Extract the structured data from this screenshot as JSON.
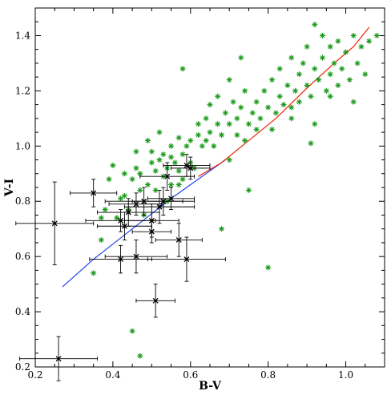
{
  "chart_data": {
    "type": "scatter",
    "title": "",
    "xlabel": "B-V",
    "ylabel": "V-I",
    "xlim": [
      0.2,
      1.1
    ],
    "ylim": [
      0.2,
      1.5
    ],
    "grid": false,
    "xticks": [
      0.2,
      0.4,
      0.6,
      0.8,
      1.0
    ],
    "xtick_labels": [
      "0.2",
      "0.4",
      "0.6",
      "0.8",
      "1.0"
    ],
    "yticks": [
      0.2,
      0.4,
      0.6,
      0.8,
      1.0,
      1.2,
      1.4
    ],
    "ytick_labels": [
      "0.2",
      "0.4",
      "0.6",
      "0.8",
      "1.0",
      "1.2",
      "1.4"
    ],
    "colors": {
      "stars": "#1a9a1a",
      "errors": "#000000",
      "blue_line": "#2244ee",
      "red_line": "#ee2200"
    },
    "series": [
      {
        "marker": "green-asterisk",
        "points": [
          [
            0.37,
            0.74
          ],
          [
            0.38,
            0.77
          ],
          [
            0.39,
            0.88
          ],
          [
            0.4,
            0.93
          ],
          [
            0.41,
            0.74
          ],
          [
            0.42,
            0.81
          ],
          [
            0.43,
            0.82
          ],
          [
            0.43,
            0.9
          ],
          [
            0.44,
            0.77
          ],
          [
            0.45,
            0.88
          ],
          [
            0.46,
            0.92
          ],
          [
            0.46,
            0.98
          ],
          [
            0.47,
            0.84
          ],
          [
            0.47,
            0.9
          ],
          [
            0.48,
            0.75
          ],
          [
            0.49,
            1.02
          ],
          [
            0.49,
            0.86
          ],
          [
            0.5,
            0.94
          ],
          [
            0.5,
            0.98
          ],
          [
            0.51,
            0.91
          ],
          [
            0.51,
            0.84
          ],
          [
            0.52,
            0.95
          ],
          [
            0.52,
            1.05
          ],
          [
            0.53,
            0.89
          ],
          [
            0.53,
            0.97
          ],
          [
            0.54,
            0.8
          ],
          [
            0.54,
            0.92
          ],
          [
            0.55,
            1.0
          ],
          [
            0.55,
            0.86
          ],
          [
            0.56,
            0.94
          ],
          [
            0.57,
            0.91
          ],
          [
            0.57,
            1.03
          ],
          [
            0.58,
            0.88
          ],
          [
            0.58,
            0.97
          ],
          [
            0.59,
            1.0
          ],
          [
            0.6,
            0.94
          ],
          [
            0.6,
            1.02
          ],
          [
            0.61,
            0.92
          ],
          [
            0.62,
            1.04
          ],
          [
            0.62,
            1.08
          ],
          [
            0.63,
            1.0
          ],
          [
            0.64,
            1.02
          ],
          [
            0.64,
            1.1
          ],
          [
            0.65,
            1.05
          ],
          [
            0.65,
            1.15
          ],
          [
            0.66,
            1.0
          ],
          [
            0.67,
            1.08
          ],
          [
            0.67,
            1.18
          ],
          [
            0.68,
            1.04
          ],
          [
            0.69,
            1.12
          ],
          [
            0.7,
            0.95
          ],
          [
            0.7,
            1.08
          ],
          [
            0.71,
            1.16
          ],
          [
            0.72,
            1.04
          ],
          [
            0.72,
            1.1
          ],
          [
            0.73,
            1.14
          ],
          [
            0.74,
            1.02
          ],
          [
            0.74,
            1.2
          ],
          [
            0.75,
            1.08
          ],
          [
            0.76,
            1.12
          ],
          [
            0.77,
            1.06
          ],
          [
            0.77,
            1.16
          ],
          [
            0.78,
            1.1
          ],
          [
            0.79,
            1.2
          ],
          [
            0.8,
            1.14
          ],
          [
            0.81,
            1.06
          ],
          [
            0.81,
            1.24
          ],
          [
            0.82,
            1.12
          ],
          [
            0.83,
            1.18
          ],
          [
            0.83,
            1.28
          ],
          [
            0.84,
            1.15
          ],
          [
            0.85,
            1.22
          ],
          [
            0.86,
            1.14
          ],
          [
            0.86,
            1.32
          ],
          [
            0.87,
            1.2
          ],
          [
            0.88,
            1.26
          ],
          [
            0.88,
            1.16
          ],
          [
            0.89,
            1.3
          ],
          [
            0.9,
            1.22
          ],
          [
            0.9,
            1.36
          ],
          [
            0.91,
            1.18
          ],
          [
            0.92,
            1.28
          ],
          [
            0.92,
            1.44
          ],
          [
            0.93,
            1.24
          ],
          [
            0.94,
            1.32
          ],
          [
            0.94,
            1.4
          ],
          [
            0.95,
            1.2
          ],
          [
            0.96,
            1.26
          ],
          [
            0.96,
            1.36
          ],
          [
            0.97,
            1.3
          ],
          [
            0.98,
            1.22
          ],
          [
            0.98,
            1.38
          ],
          [
            0.99,
            1.28
          ],
          [
            1.0,
            1.34
          ],
          [
            1.01,
            1.24
          ],
          [
            1.02,
            1.4
          ],
          [
            1.03,
            1.3
          ],
          [
            1.04,
            1.36
          ],
          [
            1.05,
            1.26
          ],
          [
            1.06,
            1.38
          ],
          [
            1.08,
            1.4
          ],
          [
            1.02,
            1.16
          ],
          [
            0.91,
            1.01
          ],
          [
            0.92,
            1.08
          ],
          [
            0.75,
            0.84
          ],
          [
            0.8,
            0.56
          ],
          [
            0.68,
            0.7
          ],
          [
            0.45,
            0.33
          ],
          [
            0.47,
            0.24
          ],
          [
            0.35,
            0.54
          ],
          [
            0.37,
            0.66
          ],
          [
            0.58,
            1.28
          ],
          [
            0.55,
            0.96
          ],
          [
            0.57,
            0.86
          ],
          [
            0.7,
            1.24
          ],
          [
            0.73,
            1.32
          ],
          [
            0.86,
            1.1
          ],
          [
            0.96,
            1.18
          ]
        ]
      },
      {
        "marker": "black-cross-with-errorbars",
        "points": [
          {
            "x": 0.26,
            "y": 0.23,
            "xerr": 0.1,
            "yerr": 0.08
          },
          {
            "x": 0.25,
            "y": 0.72,
            "xerr": 0.1,
            "yerr": 0.15
          },
          {
            "x": 0.35,
            "y": 0.83,
            "xerr": 0.06,
            "yerr": 0.05
          },
          {
            "x": 0.42,
            "y": 0.73,
            "xerr": 0.09,
            "yerr": 0.04
          },
          {
            "x": 0.43,
            "y": 0.71,
            "xerr": 0.07,
            "yerr": 0.05
          },
          {
            "x": 0.44,
            "y": 0.76,
            "xerr": 0.08,
            "yerr": 0.05
          },
          {
            "x": 0.42,
            "y": 0.59,
            "xerr": 0.08,
            "yerr": 0.05
          },
          {
            "x": 0.46,
            "y": 0.6,
            "xerr": 0.08,
            "yerr": 0.06
          },
          {
            "x": 0.46,
            "y": 0.79,
            "xerr": 0.07,
            "yerr": 0.04
          },
          {
            "x": 0.48,
            "y": 0.8,
            "xerr": 0.1,
            "yerr": 0.05
          },
          {
            "x": 0.5,
            "y": 0.73,
            "xerr": 0.07,
            "yerr": 0.06
          },
          {
            "x": 0.5,
            "y": 0.69,
            "xerr": 0.05,
            "yerr": 0.04
          },
          {
            "x": 0.51,
            "y": 0.44,
            "xerr": 0.05,
            "yerr": 0.06
          },
          {
            "x": 0.52,
            "y": 0.78,
            "xerr": 0.09,
            "yerr": 0.06
          },
          {
            "x": 0.53,
            "y": 0.8,
            "xerr": 0.08,
            "yerr": 0.05
          },
          {
            "x": 0.54,
            "y": 0.89,
            "xerr": 0.07,
            "yerr": 0.05
          },
          {
            "x": 0.55,
            "y": 0.81,
            "xerr": 0.06,
            "yerr": 0.04
          },
          {
            "x": 0.57,
            "y": 0.66,
            "xerr": 0.06,
            "yerr": 0.06
          },
          {
            "x": 0.59,
            "y": 0.59,
            "xerr": 0.1,
            "yerr": 0.08
          },
          {
            "x": 0.59,
            "y": 0.93,
            "xerr": 0.06,
            "yerr": 0.04
          },
          {
            "x": 0.6,
            "y": 0.92,
            "xerr": 0.05,
            "yerr": 0.04
          }
        ]
      },
      {
        "marker": "blue-line",
        "points": [
          [
            0.27,
            0.49
          ],
          [
            0.35,
            0.59
          ],
          [
            0.45,
            0.7
          ],
          [
            0.55,
            0.81
          ],
          [
            0.62,
            0.88
          ],
          [
            0.69,
            0.95
          ]
        ]
      },
      {
        "marker": "red-line",
        "points": [
          [
            0.62,
            0.89
          ],
          [
            0.68,
            0.94
          ],
          [
            0.75,
            1.02
          ],
          [
            0.82,
            1.1
          ],
          [
            0.9,
            1.21
          ],
          [
            0.97,
            1.3
          ],
          [
            1.02,
            1.36
          ],
          [
            1.06,
            1.43
          ]
        ]
      }
    ]
  }
}
